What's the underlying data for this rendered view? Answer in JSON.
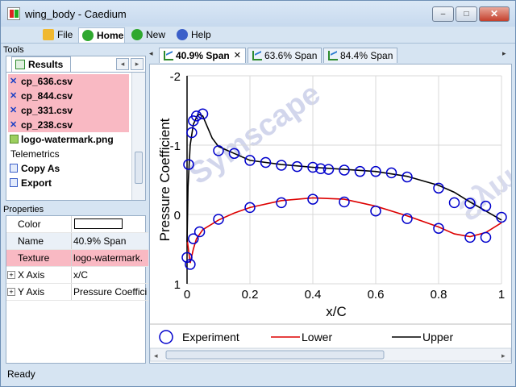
{
  "window": {
    "title": "wing_body - Caedium",
    "minimize": "–",
    "maximize": "□",
    "close": "✕"
  },
  "menu": [
    {
      "label": "File",
      "icon": "folder-icon"
    },
    {
      "label": "Home",
      "icon": "home-icon"
    },
    {
      "label": "New",
      "icon": "new-icon"
    },
    {
      "label": "Help",
      "icon": "help-icon"
    }
  ],
  "tools": {
    "header": "Tools",
    "tab": "Results",
    "items": [
      {
        "label": "cp_636.csv",
        "kind": "csv"
      },
      {
        "label": "cp_844.csv",
        "kind": "csv"
      },
      {
        "label": "cp_331.csv",
        "kind": "csv"
      },
      {
        "label": "cp_238.csv",
        "kind": "csv"
      },
      {
        "label": "logo-watermark.png",
        "kind": "image"
      },
      {
        "label": "Telemetrics",
        "kind": "group"
      },
      {
        "label": "Copy As",
        "kind": "action"
      },
      {
        "label": "Export",
        "kind": "action"
      }
    ]
  },
  "properties": {
    "header": "Properties",
    "rows": [
      {
        "key": "Color",
        "value": ""
      },
      {
        "key": "Name",
        "value": "40.9% Span"
      },
      {
        "key": "Texture",
        "value": "logo-watermark."
      },
      {
        "key": "X Axis",
        "value": "x/C"
      },
      {
        "key": "Y Axis",
        "value": "Pressure Coeffici"
      }
    ]
  },
  "doc_tabs": [
    {
      "label": "40.9% Span",
      "active": true
    },
    {
      "label": "63.6% Span",
      "active": false
    },
    {
      "label": "84.4% Span",
      "active": false
    }
  ],
  "status": "Ready",
  "watermark": "Symscape",
  "chart_data": {
    "type": "line",
    "xlabel": "x/C",
    "ylabel": "Pressure Coefficient",
    "xlim": [
      0,
      1
    ],
    "ylim": [
      1,
      -2
    ],
    "x_ticks": [
      "0",
      "0.2",
      "0.4",
      "0.6",
      "0.8",
      "1"
    ],
    "y_ticks": [
      "-2",
      "-1",
      "0",
      "1"
    ],
    "legend": [
      "Experiment",
      "Lower",
      "Upper"
    ],
    "colors": {
      "Experiment": "#0000cc",
      "Lower": "#dd0000",
      "Upper": "#000000"
    },
    "series": [
      {
        "name": "Experiment",
        "style": "markers",
        "points": [
          [
            0.0,
            0.62
          ],
          [
            0.01,
            0.72
          ],
          [
            0.005,
            -0.72
          ],
          [
            0.015,
            -1.18
          ],
          [
            0.02,
            -1.35
          ],
          [
            0.03,
            -1.42
          ],
          [
            0.05,
            -1.45
          ],
          [
            0.1,
            -0.92
          ],
          [
            0.15,
            -0.88
          ],
          [
            0.2,
            -0.78
          ],
          [
            0.25,
            -0.75
          ],
          [
            0.3,
            -0.71
          ],
          [
            0.35,
            -0.69
          ],
          [
            0.4,
            -0.68
          ],
          [
            0.425,
            -0.66
          ],
          [
            0.45,
            -0.65
          ],
          [
            0.5,
            -0.64
          ],
          [
            0.55,
            -0.62
          ],
          [
            0.6,
            -0.62
          ],
          [
            0.65,
            -0.6
          ],
          [
            0.7,
            -0.54
          ],
          [
            0.8,
            -0.38
          ],
          [
            0.85,
            -0.17
          ],
          [
            0.9,
            -0.16
          ],
          [
            0.95,
            -0.12
          ],
          [
            1.0,
            0.04
          ],
          [
            0.02,
            0.35
          ],
          [
            0.04,
            0.25
          ],
          [
            0.1,
            0.07
          ],
          [
            0.2,
            -0.1
          ],
          [
            0.3,
            -0.17
          ],
          [
            0.4,
            -0.22
          ],
          [
            0.5,
            -0.18
          ],
          [
            0.6,
            -0.05
          ],
          [
            0.7,
            0.06
          ],
          [
            0.8,
            0.2
          ],
          [
            0.9,
            0.33
          ],
          [
            0.95,
            0.33
          ]
        ]
      },
      {
        "name": "Lower",
        "style": "line",
        "points": [
          [
            0.0,
            0.35
          ],
          [
            0.01,
            0.7
          ],
          [
            0.02,
            0.5
          ],
          [
            0.03,
            0.35
          ],
          [
            0.05,
            0.22
          ],
          [
            0.1,
            0.08
          ],
          [
            0.15,
            -0.02
          ],
          [
            0.2,
            -0.1
          ],
          [
            0.3,
            -0.2
          ],
          [
            0.4,
            -0.24
          ],
          [
            0.5,
            -0.22
          ],
          [
            0.6,
            -0.12
          ],
          [
            0.7,
            0.02
          ],
          [
            0.8,
            0.18
          ],
          [
            0.85,
            0.28
          ],
          [
            0.9,
            0.32
          ],
          [
            0.95,
            0.26
          ],
          [
            1.0,
            0.12
          ]
        ]
      },
      {
        "name": "Upper",
        "style": "line",
        "points": [
          [
            0.0,
            0.4
          ],
          [
            0.003,
            -0.4
          ],
          [
            0.01,
            -1.0
          ],
          [
            0.02,
            -1.3
          ],
          [
            0.035,
            -1.45
          ],
          [
            0.05,
            -1.42
          ],
          [
            0.08,
            -1.1
          ],
          [
            0.1,
            -0.98
          ],
          [
            0.15,
            -0.88
          ],
          [
            0.2,
            -0.78
          ],
          [
            0.3,
            -0.72
          ],
          [
            0.4,
            -0.68
          ],
          [
            0.5,
            -0.65
          ],
          [
            0.6,
            -0.62
          ],
          [
            0.7,
            -0.55
          ],
          [
            0.8,
            -0.42
          ],
          [
            0.85,
            -0.32
          ],
          [
            0.9,
            -0.18
          ],
          [
            0.95,
            -0.05
          ],
          [
            1.0,
            0.08
          ]
        ]
      }
    ]
  }
}
